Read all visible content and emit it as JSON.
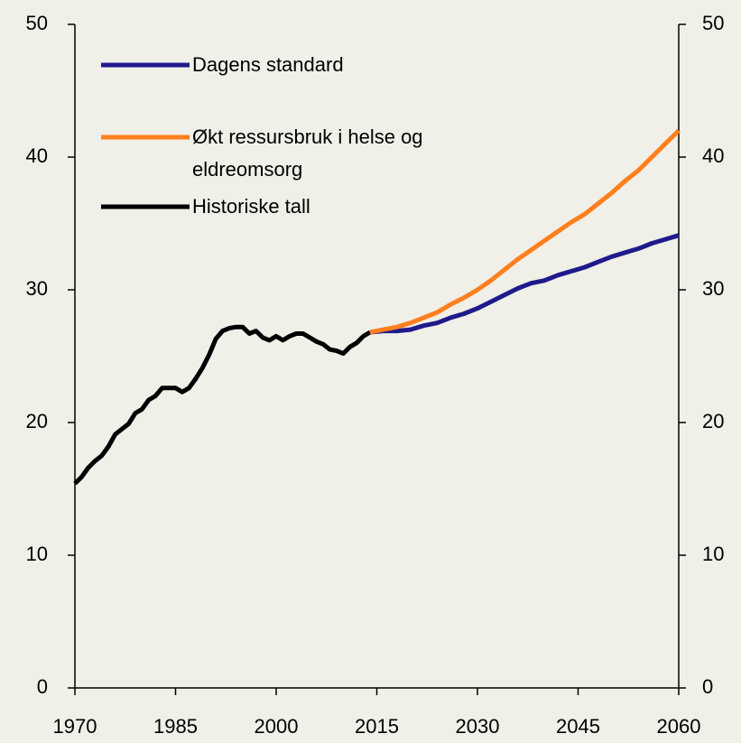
{
  "chart_data": {
    "type": "line",
    "xlim": [
      1970,
      2060
    ],
    "xticks": [
      1970,
      1985,
      2000,
      2015,
      2030,
      2045,
      2060
    ],
    "ylim": [
      0,
      50
    ],
    "yticks": [
      0,
      10,
      20,
      30,
      40,
      50
    ],
    "y2lim": [
      0,
      50
    ],
    "y2ticks": [
      0,
      10,
      20,
      30,
      40,
      50
    ],
    "legend": "upper left",
    "series": [
      {
        "name": "Dagens standard",
        "color": "#1f1a8c",
        "x": [
          2014,
          2016,
          2018,
          2020,
          2022,
          2024,
          2026,
          2028,
          2030,
          2032,
          2034,
          2036,
          2038,
          2040,
          2042,
          2044,
          2046,
          2048,
          2050,
          2052,
          2054,
          2056,
          2058,
          2060
        ],
        "values": [
          26.8,
          26.9,
          26.9,
          27.0,
          27.3,
          27.5,
          27.9,
          28.2,
          28.6,
          29.1,
          29.6,
          30.1,
          30.5,
          30.7,
          31.1,
          31.4,
          31.7,
          32.1,
          32.5,
          32.8,
          33.1,
          33.5,
          33.8,
          34.1
        ]
      },
      {
        "name": "Økt ressursbruk i helse og eldreomsorg",
        "color": "#ff7f1e",
        "x": [
          2014,
          2016,
          2018,
          2020,
          2022,
          2024,
          2026,
          2028,
          2030,
          2032,
          2034,
          2036,
          2038,
          2040,
          2042,
          2044,
          2046,
          2048,
          2050,
          2052,
          2054,
          2056,
          2058,
          2060
        ],
        "values": [
          26.8,
          27.0,
          27.2,
          27.5,
          27.9,
          28.3,
          28.9,
          29.4,
          30.0,
          30.7,
          31.5,
          32.3,
          33.0,
          33.7,
          34.4,
          35.1,
          35.7,
          36.5,
          37.3,
          38.2,
          39.0,
          40.0,
          41.0,
          42.0
        ]
      },
      {
        "name": "Historiske tall",
        "color": "#000000",
        "x": [
          1970,
          1971,
          1972,
          1973,
          1974,
          1975,
          1976,
          1977,
          1978,
          1979,
          1980,
          1981,
          1982,
          1983,
          1984,
          1985,
          1986,
          1987,
          1988,
          1989,
          1990,
          1991,
          1992,
          1993,
          1994,
          1995,
          1996,
          1997,
          1998,
          1999,
          2000,
          2001,
          2002,
          2003,
          2004,
          2005,
          2006,
          2007,
          2008,
          2009,
          2010,
          2011,
          2012,
          2013,
          2014
        ],
        "values": [
          15.4,
          15.9,
          16.6,
          17.1,
          17.5,
          18.2,
          19.1,
          19.5,
          19.9,
          20.7,
          21.0,
          21.7,
          22.0,
          22.6,
          22.6,
          22.6,
          22.3,
          22.6,
          23.3,
          24.1,
          25.1,
          26.3,
          26.9,
          27.1,
          27.2,
          27.2,
          26.7,
          26.9,
          26.4,
          26.2,
          26.5,
          26.2,
          26.5,
          26.7,
          26.7,
          26.4,
          26.1,
          25.9,
          25.5,
          25.4,
          25.2,
          25.7,
          26.0,
          26.5,
          26.8
        ]
      }
    ]
  }
}
